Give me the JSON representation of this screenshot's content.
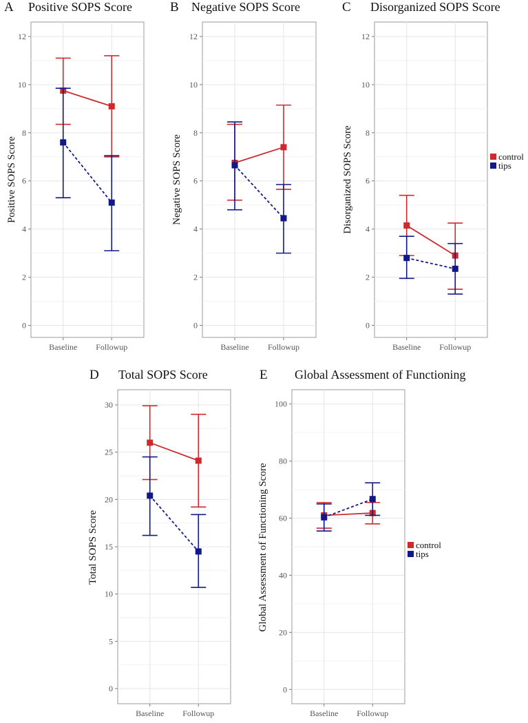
{
  "figure": {
    "legend_entries": [
      {
        "name": "control",
        "color": "#cc2a2f"
      },
      {
        "name": "tips",
        "color": "#10188a"
      }
    ]
  },
  "chart_data": [
    {
      "type": "line",
      "letter": "A",
      "title": "Positive SOPS Score",
      "xlabel": "",
      "ylabel": "Positive SOPS Score",
      "categories": [
        "Baseline",
        "Followup"
      ],
      "ylim": [
        -0.5,
        12.6
      ],
      "yticks": [
        0,
        2,
        4,
        6,
        8,
        10,
        12
      ],
      "show_legend": false,
      "series": [
        {
          "name": "control",
          "color": "#cc2a2f",
          "dashed": false,
          "values": [
            9.75,
            9.1
          ],
          "lower": [
            8.35,
            7.0
          ],
          "upper": [
            11.1,
            11.2
          ]
        },
        {
          "name": "tips",
          "color": "#10188a",
          "dashed": true,
          "values": [
            7.6,
            5.1
          ],
          "lower": [
            5.3,
            3.1
          ],
          "upper": [
            9.85,
            7.05
          ]
        }
      ]
    },
    {
      "type": "line",
      "letter": "B",
      "title": "Negative SOPS Score",
      "xlabel": "",
      "ylabel": "Negative SOPS Score",
      "categories": [
        "Baseline",
        "Followup"
      ],
      "ylim": [
        -0.5,
        12.6
      ],
      "yticks": [
        0,
        2,
        4,
        6,
        8,
        10,
        12
      ],
      "show_legend": false,
      "series": [
        {
          "name": "control",
          "color": "#cc2a2f",
          "dashed": false,
          "values": [
            6.75,
            7.4
          ],
          "lower": [
            5.2,
            5.65
          ],
          "upper": [
            8.35,
            9.15
          ]
        },
        {
          "name": "tips",
          "color": "#10188a",
          "dashed": true,
          "values": [
            6.65,
            4.45
          ],
          "lower": [
            4.8,
            3.0
          ],
          "upper": [
            8.45,
            5.85
          ]
        }
      ]
    },
    {
      "type": "line",
      "letter": "C",
      "title": "Disorganized SOPS Score",
      "xlabel": "",
      "ylabel": "Disorganized SOPS Score",
      "categories": [
        "Baseline",
        "Followup"
      ],
      "ylim": [
        -0.5,
        12.6
      ],
      "yticks": [
        0,
        2,
        4,
        6,
        8,
        10,
        12
      ],
      "show_legend": true,
      "series": [
        {
          "name": "control",
          "color": "#cc2a2f",
          "dashed": false,
          "values": [
            4.15,
            2.9
          ],
          "lower": [
            2.9,
            1.5
          ],
          "upper": [
            5.4,
            4.25
          ]
        },
        {
          "name": "tips",
          "color": "#10188a",
          "dashed": true,
          "values": [
            2.8,
            2.35
          ],
          "lower": [
            1.95,
            1.3
          ],
          "upper": [
            3.7,
            3.4
          ]
        }
      ]
    },
    {
      "type": "line",
      "letter": "D",
      "title": "Total SOPS Score",
      "xlabel": "",
      "ylabel": "Total SOPS Score",
      "categories": [
        "Baseline",
        "Followup"
      ],
      "ylim": [
        -1.6,
        31.6
      ],
      "yticks": [
        0,
        5,
        10,
        15,
        20,
        25,
        30
      ],
      "show_legend": false,
      "series": [
        {
          "name": "control",
          "color": "#cc2a2f",
          "dashed": false,
          "values": [
            26.0,
            24.1
          ],
          "lower": [
            22.1,
            19.2
          ],
          "upper": [
            29.9,
            29.0
          ]
        },
        {
          "name": "tips",
          "color": "#10188a",
          "dashed": true,
          "values": [
            20.4,
            14.5
          ],
          "lower": [
            16.2,
            10.7
          ],
          "upper": [
            24.5,
            18.4
          ]
        }
      ]
    },
    {
      "type": "line",
      "letter": "E",
      "title": "Global Assessment of Functioning",
      "xlabel": "",
      "ylabel": "Global Assessment of Functioning Score",
      "categories": [
        "Baseline",
        "Followup"
      ],
      "ylim": [
        -5,
        105
      ],
      "yticks": [
        0,
        20,
        40,
        60,
        80,
        100
      ],
      "show_legend": true,
      "series": [
        {
          "name": "control",
          "color": "#cc2a2f",
          "dashed": false,
          "values": [
            61.0,
            61.8
          ],
          "lower": [
            56.5,
            58.0
          ],
          "upper": [
            65.5,
            65.5
          ]
        },
        {
          "name": "tips",
          "color": "#10188a",
          "dashed": true,
          "values": [
            60.3,
            66.7
          ],
          "lower": [
            55.5,
            61.0
          ],
          "upper": [
            65.0,
            72.4
          ]
        }
      ]
    }
  ]
}
